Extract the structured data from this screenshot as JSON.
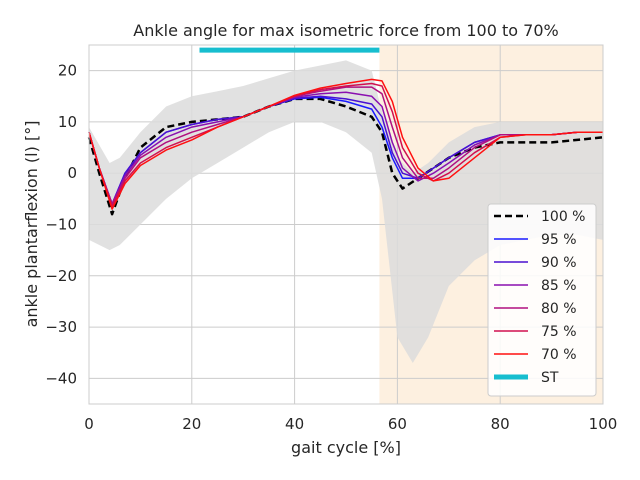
{
  "chart_data": {
    "type": "line",
    "title": "Ankle angle for max isometric force from 100 to 70%",
    "xlabel": "gait cycle [%]",
    "ylabel": "ankle plantarflexion (l) [°]",
    "xlim": [
      0,
      100
    ],
    "ylim": [
      -45,
      25
    ],
    "xticks": [
      0,
      20,
      40,
      60,
      80,
      100
    ],
    "yticks": [
      -40,
      -30,
      -20,
      -10,
      0,
      10,
      20
    ],
    "grid": true,
    "legend_position": "bottom-right",
    "stance_region": {
      "x_start": 56.5,
      "x_end": 100,
      "color": "#fdf0e0"
    },
    "reference_band": {
      "color": "#dcdcdc",
      "x": [
        0,
        4,
        6,
        10,
        15,
        20,
        25,
        30,
        35,
        40,
        45,
        50,
        55,
        57,
        60,
        63,
        66,
        70,
        75,
        80,
        85,
        90,
        95,
        100
      ],
      "upper": [
        9,
        2,
        3,
        8,
        13,
        15,
        16,
        17,
        18.5,
        20,
        21,
        22,
        20,
        12,
        3,
        0,
        2,
        6,
        9,
        10,
        10,
        10,
        10,
        10
      ],
      "lower": [
        -13,
        -15,
        -14,
        -10,
        -5,
        -1,
        2,
        5,
        8,
        10,
        10,
        8,
        4,
        -5,
        -32,
        -37,
        -32,
        -22,
        -17,
        -14,
        -13,
        -12,
        -12,
        -13
      ]
    },
    "series": [
      {
        "name": "100 %",
        "color": "#000000",
        "dashed": true,
        "width": 2.5,
        "x": [
          0,
          2,
          4.5,
          7,
          10,
          15,
          20,
          25,
          30,
          35,
          40,
          45,
          50,
          55,
          57,
          59,
          61,
          64,
          67,
          70,
          75,
          80,
          85,
          90,
          95,
          100
        ],
        "y": [
          7,
          0,
          -8,
          -1,
          5,
          9,
          10,
          10.5,
          11,
          13,
          14.5,
          14.5,
          13,
          11,
          8,
          0,
          -3,
          -1,
          1,
          3,
          5,
          6,
          6,
          6,
          6.5,
          7
        ]
      },
      {
        "name": "95 %",
        "color": "#1a1aff",
        "dashed": false,
        "width": 1.5,
        "x": [
          0,
          2,
          4.5,
          7,
          10,
          15,
          20,
          25,
          30,
          35,
          40,
          45,
          50,
          55,
          57,
          59,
          61,
          64,
          67,
          70,
          75,
          80,
          85,
          90,
          95,
          100
        ],
        "y": [
          8,
          1,
          -6,
          0,
          4,
          8,
          9.5,
          10.5,
          11,
          13,
          14.5,
          14.8,
          14,
          12.5,
          9,
          3,
          -1,
          -1,
          1,
          3,
          6,
          7.5,
          7.5,
          7.5,
          8,
          8
        ]
      },
      {
        "name": "90 %",
        "color": "#4a10d0",
        "dashed": false,
        "width": 1.5,
        "x": [
          0,
          2,
          4.5,
          7,
          10,
          15,
          20,
          25,
          30,
          35,
          40,
          45,
          50,
          55,
          57,
          59,
          61,
          64,
          67,
          70,
          75,
          80,
          85,
          90,
          95,
          100
        ],
        "y": [
          8,
          1,
          -6,
          0,
          4,
          8,
          9.5,
          10.5,
          11,
          13,
          14.6,
          15,
          14.5,
          13.5,
          11,
          4,
          0,
          -1,
          1,
          3,
          6,
          7.5,
          7.5,
          7.5,
          8,
          8
        ]
      },
      {
        "name": "85 %",
        "color": "#8a10b0",
        "dashed": false,
        "width": 1.5,
        "x": [
          0,
          2,
          4.5,
          7,
          10,
          15,
          20,
          25,
          30,
          35,
          40,
          45,
          50,
          55,
          57,
          59,
          61,
          64,
          67,
          70,
          75,
          80,
          85,
          90,
          95,
          100
        ],
        "y": [
          8,
          1,
          -6,
          -0.5,
          3.5,
          7,
          9,
          10,
          11,
          13,
          14.8,
          15.5,
          15.8,
          15,
          13,
          6,
          1,
          -1.5,
          0,
          2,
          5.5,
          7.5,
          7.5,
          7.5,
          8,
          8
        ]
      },
      {
        "name": "80 %",
        "color": "#b01080",
        "dashed": false,
        "width": 1.5,
        "x": [
          0,
          2,
          4.5,
          7,
          10,
          15,
          20,
          25,
          30,
          35,
          40,
          45,
          50,
          55,
          57,
          59,
          61,
          64,
          67,
          70,
          75,
          80,
          85,
          90,
          95,
          100
        ],
        "y": [
          8,
          1,
          -6,
          -1,
          3,
          6,
          8,
          9.5,
          11,
          13,
          15,
          16,
          16.8,
          16.8,
          15.5,
          9,
          3,
          -1,
          -1,
          1,
          5,
          7.5,
          7.5,
          7.5,
          8,
          8
        ]
      },
      {
        "name": "75 %",
        "color": "#d01050",
        "dashed": false,
        "width": 1.5,
        "x": [
          0,
          2,
          4.5,
          7,
          10,
          15,
          20,
          25,
          30,
          35,
          40,
          45,
          50,
          55,
          57,
          59,
          61,
          64,
          67,
          70,
          75,
          80,
          85,
          90,
          95,
          100
        ],
        "y": [
          8,
          1,
          -6.5,
          -1.5,
          2,
          5,
          7,
          9,
          11,
          13,
          15,
          16.3,
          17,
          17.5,
          17,
          12,
          5,
          0,
          -1.5,
          0,
          4,
          7,
          7.5,
          7.5,
          8,
          8
        ]
      },
      {
        "name": "70 %",
        "color": "#ff1010",
        "dashed": false,
        "width": 1.5,
        "x": [
          0,
          2,
          4.5,
          7,
          10,
          15,
          20,
          25,
          30,
          35,
          40,
          45,
          50,
          55,
          57,
          59,
          61,
          64,
          67,
          70,
          75,
          80,
          85,
          90,
          95,
          100
        ],
        "y": [
          8,
          1,
          -7,
          -2,
          1.5,
          4.5,
          6.5,
          9,
          11,
          13,
          15.2,
          16.6,
          17.5,
          18.3,
          18,
          14,
          7,
          1,
          -1.5,
          -1,
          3,
          7,
          7.5,
          7.5,
          8,
          8
        ]
      }
    ],
    "markers": [
      {
        "name": "ST",
        "color": "#17becf",
        "x_start": 21.5,
        "x_end": 56.5,
        "y": 24,
        "width": 5
      }
    ]
  }
}
